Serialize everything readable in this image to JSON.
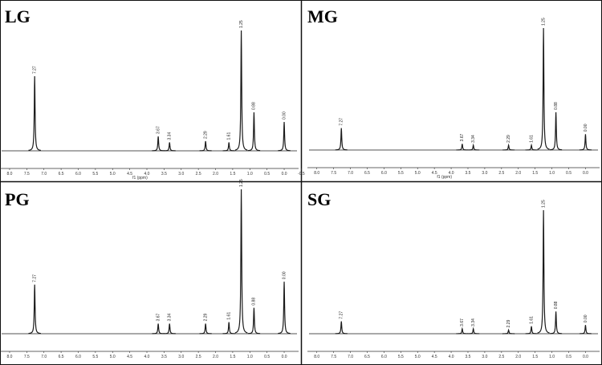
{
  "chart_data": [
    {
      "type": "line",
      "title": "LG",
      "xlabel": "f1 (ppm)",
      "color": "#1a1a1a",
      "x": [
        7.27,
        3.67,
        3.34,
        2.29,
        1.61,
        1.25,
        0.88,
        {
          "value": 0,
          "label": "0.00"
        }
      ],
      "values": [
        62,
        12,
        7,
        8,
        7,
        100,
        32,
        24
      ],
      "xlim": [
        8.28,
        -0.42
      ],
      "ylim": [
        0,
        100
      ],
      "xticks": [
        {
          "value": 8,
          "label": "8.0"
        },
        7.5,
        {
          "value": 7,
          "label": "7.0"
        },
        6.5,
        {
          "value": 6,
          "label": "6.0"
        },
        5.5,
        {
          "value": 5,
          "label": "5.0"
        },
        4.5,
        {
          "value": 4,
          "label": "4.0"
        },
        3.5,
        {
          "value": 3,
          "label": "3.0"
        },
        2.5,
        {
          "value": 2,
          "label": "2.0"
        },
        1.5,
        {
          "value": 1,
          "label": "1.0"
        },
        0.5,
        {
          "value": 0,
          "label": "0.0"
        },
        -0.5
      ]
    },
    {
      "type": "line",
      "title": "MG",
      "xlabel": "f1 (ppm)",
      "color": "#1a1a1a",
      "x": [
        7.27,
        3.67,
        3.34,
        2.29,
        1.61,
        1.25,
        0.88,
        {
          "value": 0,
          "label": "0.00"
        }
      ],
      "values": [
        18,
        5,
        4,
        4,
        4,
        100,
        31,
        13
      ],
      "xlim": [
        8.28,
        -0.42
      ],
      "ylim": [
        0,
        100
      ],
      "xticks": [
        {
          "value": 8,
          "label": "8.0"
        },
        7.5,
        {
          "value": 7,
          "label": "7.0"
        },
        6.5,
        {
          "value": 6,
          "label": "6.0"
        },
        5.5,
        {
          "value": 5,
          "label": "5.0"
        },
        4.5,
        {
          "value": 4,
          "label": "4.0"
        },
        3.5,
        {
          "value": 3,
          "label": "3.0"
        },
        2.5,
        {
          "value": 2,
          "label": "2.0"
        },
        1.5,
        {
          "value": 1,
          "label": "1.0"
        },
        0.5,
        {
          "value": 0,
          "label": "0.0"
        }
      ]
    },
    {
      "type": "line",
      "title": "PG",
      "color": "#1a1a1a",
      "x": [
        7.27,
        3.67,
        3.34,
        2.29,
        1.61,
        1.25,
        0.88,
        {
          "value": 0,
          "label": "0.00"
        }
      ],
      "values": [
        34,
        7,
        7,
        7,
        8,
        100,
        18,
        36
      ],
      "xlim": [
        8.28,
        -0.42
      ],
      "ylim": [
        0,
        100
      ],
      "xticks": [
        {
          "value": 8,
          "label": "8.0"
        },
        7.5,
        {
          "value": 7,
          "label": "7.0"
        },
        6.5,
        {
          "value": 6,
          "label": "6.0"
        },
        5.5,
        {
          "value": 5,
          "label": "5.0"
        },
        4.5,
        {
          "value": 4,
          "label": "4.0"
        },
        3.5,
        {
          "value": 3,
          "label": "3.0"
        },
        2.5,
        {
          "value": 2,
          "label": "2.0"
        },
        1.5,
        {
          "value": 1,
          "label": "1.0"
        },
        0.5,
        {
          "value": 0,
          "label": "0.0"
        }
      ]
    },
    {
      "type": "line",
      "title": "SG",
      "color": "#1a1a1a",
      "x": [
        7.27,
        3.67,
        3.34,
        2.29,
        1.61,
        1.25,
        0.88,
        {
          "value": 0,
          "label": "0.00"
        }
      ],
      "values": [
        10,
        4,
        4,
        3,
        6,
        100,
        18,
        7
      ],
      "xlim": [
        8.28,
        -0.42
      ],
      "ylim": [
        0,
        100
      ],
      "xticks": [
        {
          "value": 8,
          "label": "8.0"
        },
        7.5,
        {
          "value": 7,
          "label": "7.0"
        },
        6.5,
        {
          "value": 6,
          "label": "6.0"
        },
        5.5,
        {
          "value": 5,
          "label": "5.0"
        },
        4.5,
        {
          "value": 4,
          "label": "4.0"
        },
        3.5,
        {
          "value": 3,
          "label": "3.0"
        },
        2.5,
        {
          "value": 2,
          "label": "2.0"
        },
        1.5,
        {
          "value": 1,
          "label": "1.0"
        },
        0.5,
        {
          "value": 0,
          "label": "0.0"
        }
      ]
    }
  ]
}
